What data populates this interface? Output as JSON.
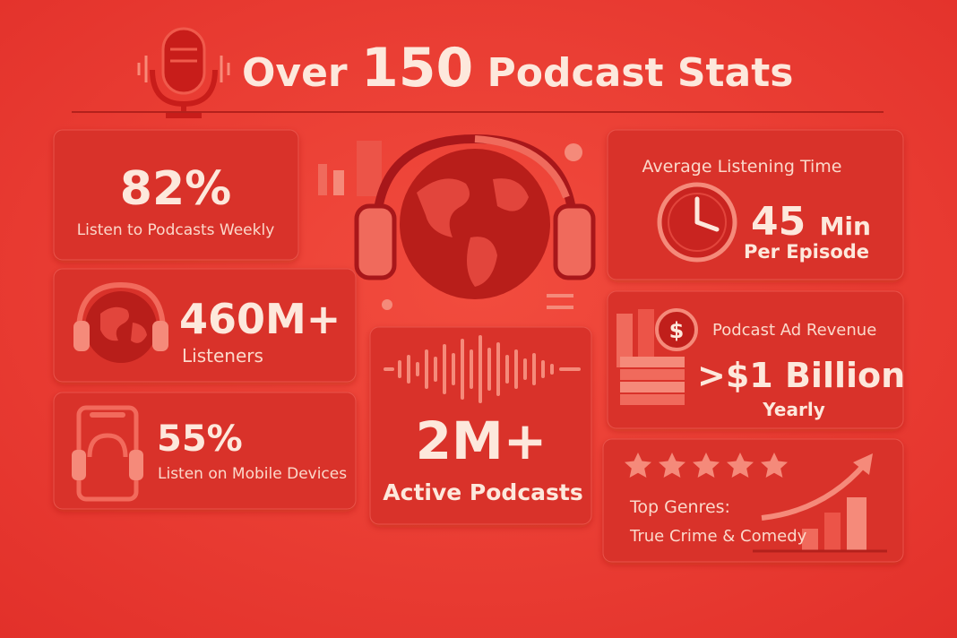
{
  "header": {
    "title_parts": [
      "Over",
      "150",
      "Podcast Stats"
    ]
  },
  "cards": {
    "weekly": {
      "stat": "82%",
      "label": "Listen to Podcasts Weekly"
    },
    "listeners": {
      "stat": "460M+",
      "label": "Listeners"
    },
    "mobile": {
      "stat": "55%",
      "label": "Listen on Mobile Devices"
    },
    "podcasts": {
      "stat": "2M+",
      "label": "Active Podcasts"
    },
    "time": {
      "heading": "Average Listening Time",
      "stat": "45",
      "unit": "Min",
      "label": "Per Episode"
    },
    "revenue": {
      "coin_symbol": "$",
      "heading": "Podcast Ad Revenue",
      "stat": ">$1 Billion",
      "label": "Yearly"
    },
    "genres": {
      "heading": "Top Genres:",
      "label": "True Crime & Comedy"
    }
  }
}
